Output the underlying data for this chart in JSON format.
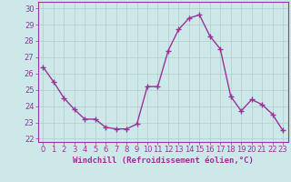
{
  "x": [
    0,
    1,
    2,
    3,
    4,
    5,
    6,
    7,
    8,
    9,
    10,
    11,
    12,
    13,
    14,
    15,
    16,
    17,
    18,
    19,
    20,
    21,
    22,
    23
  ],
  "y": [
    26.4,
    25.5,
    24.5,
    23.8,
    23.2,
    23.2,
    22.7,
    22.6,
    22.6,
    22.9,
    25.2,
    25.2,
    27.4,
    28.7,
    29.4,
    29.6,
    28.3,
    27.5,
    24.6,
    23.7,
    24.4,
    24.1,
    23.5,
    22.5
  ],
  "line_color": "#993399",
  "marker": "+",
  "markersize": 4,
  "linewidth": 1,
  "xlabel": "Windchill (Refroidissement éolien,°C)",
  "xlabel_fontsize": 6.5,
  "xticks": [
    0,
    1,
    2,
    3,
    4,
    5,
    6,
    7,
    8,
    9,
    10,
    11,
    12,
    13,
    14,
    15,
    16,
    17,
    18,
    19,
    20,
    21,
    22,
    23
  ],
  "yticks": [
    22,
    23,
    24,
    25,
    26,
    27,
    28,
    29,
    30
  ],
  "ylim": [
    21.8,
    30.4
  ],
  "xlim": [
    -0.5,
    23.5
  ],
  "grid_color": "#b0cccc",
  "bg_color": "#cce8e8",
  "tick_fontsize": 6,
  "tick_color": "#993399",
  "label_color": "#993399",
  "spine_color": "#993399"
}
